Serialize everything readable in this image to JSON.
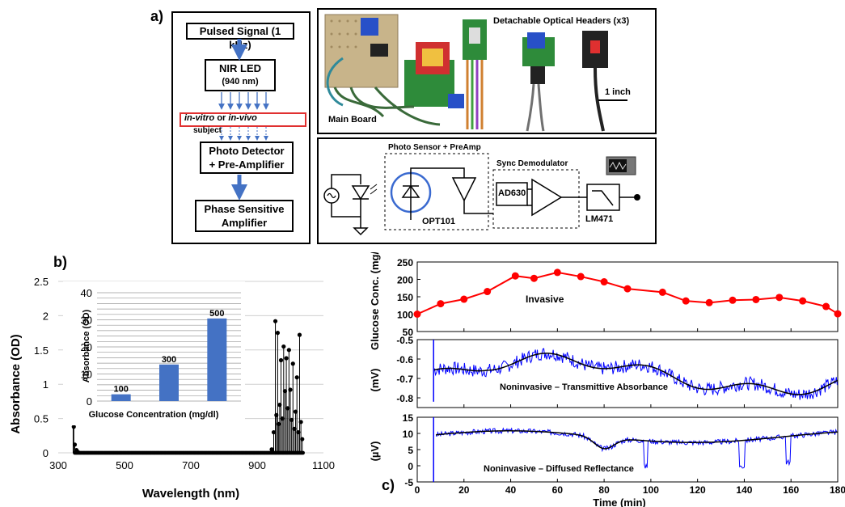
{
  "panel_a": {
    "label": "a)",
    "flow": {
      "pulsed_signal": "Pulsed Signal (1 kHz)",
      "nir_led_line1": "NIR LED",
      "nir_led_line2": "(940 nm)",
      "subject_italic1": "in-vitro",
      "subject_or": " or ",
      "subject_italic2": "in-vivo",
      "subject_word": "subject",
      "photo_detector_line1": "Photo Detector",
      "photo_detector_line2": "+ Pre-Amplifier",
      "psa_line1": "Phase Sensitive",
      "psa_line2": "Amplifier"
    },
    "photo": {
      "headers_label": "Detachable Optical Headers (x3)",
      "scale_label": "1 inch",
      "main_board_label": "Main Board"
    },
    "circuit": {
      "photo_sensor_label": "Photo Sensor + PreAmp",
      "sync_demod_label": "Sync Demodulator",
      "opt_label": "OPT101",
      "ad_label": "AD630",
      "lm_label": "LM471"
    }
  },
  "panel_b": {
    "label": "b)",
    "chart_data": [
      {
        "type": "line",
        "xlabel": "Wavelength (nm)",
        "ylabel": "Absorbance (OD)",
        "xlim": [
          300,
          1100
        ],
        "ylim": [
          0,
          2.5
        ],
        "xticks": [
          "300",
          "500",
          "700",
          "900",
          "1100"
        ],
        "yticks": [
          "0",
          "0.5",
          "1",
          "1.5",
          "2",
          "2.5"
        ],
        "series": [
          {
            "values": [
              {
                "x": 345,
                "y": 0.82
              },
              {
                "x": 347,
                "y": 0.38
              },
              {
                "x": 350,
                "y": 0.12
              },
              {
                "x": 355,
                "y": 0.04
              },
              {
                "x": 360,
                "y": 0.01
              },
              {
                "x": 944,
                "y": 0.05
              },
              {
                "x": 950,
                "y": 0.3
              },
              {
                "x": 955,
                "y": 1.92
              },
              {
                "x": 958,
                "y": 0.55
              },
              {
                "x": 962,
                "y": 1.75
              },
              {
                "x": 965,
                "y": 0.42
              },
              {
                "x": 968,
                "y": 0.7
              },
              {
                "x": 972,
                "y": 1.35
              },
              {
                "x": 976,
                "y": 0.5
              },
              {
                "x": 980,
                "y": 1.55
              },
              {
                "x": 984,
                "y": 0.9
              },
              {
                "x": 988,
                "y": 1.38
              },
              {
                "x": 992,
                "y": 0.65
              },
              {
                "x": 996,
                "y": 1.5
              },
              {
                "x": 1000,
                "y": 0.92
              },
              {
                "x": 1004,
                "y": 0.48
              },
              {
                "x": 1008,
                "y": 1.3
              },
              {
                "x": 1012,
                "y": 0.35
              },
              {
                "x": 1016,
                "y": 0.6
              },
              {
                "x": 1020,
                "y": 1.1
              },
              {
                "x": 1024,
                "y": 0.3
              },
              {
                "x": 1028,
                "y": 1.72
              },
              {
                "x": 1032,
                "y": 0.45
              },
              {
                "x": 1036,
                "y": 0.2
              }
            ]
          }
        ]
      },
      {
        "type": "bar",
        "categories": [
          "100",
          "300",
          "500"
        ],
        "values": [
          2.5,
          13.5,
          30.5
        ],
        "data_labels": [
          "100",
          "300",
          "500"
        ],
        "xlabel": "Glucose Concentration (mg/dl)",
        "ylabel": "Absorbance (OD)",
        "ylim": [
          0,
          40
        ],
        "yticks": [
          "0",
          "10",
          "20",
          "30",
          "40"
        ],
        "colors": {
          "bar": "#4472c4",
          "grid": "#9a9a9a"
        }
      }
    ]
  },
  "panel_c": {
    "label": "c)",
    "chart_data": [
      {
        "type": "line",
        "ylabel": "Glucose Conc. (mg/dl)",
        "annotation": "Invasive",
        "ylim": [
          50,
          250
        ],
        "yticks": [
          "50",
          "100",
          "150",
          "200",
          "250"
        ],
        "x": [
          0,
          10,
          20,
          30,
          42,
          50,
          60,
          70,
          80,
          90,
          105,
          115,
          125,
          135,
          145,
          155,
          165,
          175,
          180
        ],
        "values": [
          100,
          130,
          143,
          165,
          210,
          203,
          220,
          208,
          193,
          173,
          163,
          138,
          133,
          140,
          142,
          148,
          138,
          122,
          101
        ],
        "colors": {
          "line": "#ff0000",
          "marker": "#ff0000"
        }
      },
      {
        "type": "line",
        "ylabel": "(mV)",
        "annotation": "Noninvasive – Transmittive Absorbance",
        "ylim": [
          -0.85,
          -0.5
        ],
        "yticks": [
          "-0.8",
          "-0.7",
          "-0.6",
          "-0.5"
        ],
        "colors": {
          "raw": "#0000ff",
          "smooth": "#000000"
        }
      },
      {
        "type": "line",
        "ylabel": "(µV)",
        "annotation": "Noninvasive – Diffused Reflectance",
        "ylim": [
          -5,
          15
        ],
        "yticks": [
          "-5",
          "0",
          "5",
          "10",
          "15"
        ],
        "xlabel": "Time (min)",
        "xlim": [
          0,
          180
        ],
        "xticks": [
          "0",
          "20",
          "40",
          "60",
          "80",
          "100",
          "120",
          "140",
          "160",
          "180"
        ],
        "colors": {
          "raw": "#0000ff",
          "smooth": "#000000"
        }
      }
    ]
  }
}
